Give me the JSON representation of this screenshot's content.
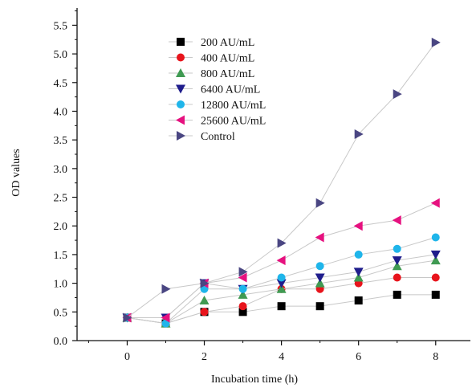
{
  "chart_data": {
    "type": "line",
    "xlabel": "Incubation time (h)",
    "ylabel": "OD values",
    "xlim": [
      -1.3,
      8.9
    ],
    "ylim": [
      0,
      5.8
    ],
    "xticks": [
      0,
      2,
      4,
      6,
      8
    ],
    "yticks": [
      0.0,
      0.5,
      1.0,
      1.5,
      2.0,
      2.5,
      3.0,
      3.5,
      4.0,
      4.5,
      5.0,
      5.5
    ],
    "ytick_labels": [
      "0.0",
      "0.5",
      "1.0",
      "1.5",
      "2.0",
      "2.5",
      "3.0",
      "3.5",
      "4.0",
      "4.5",
      "5.0",
      "5.5"
    ],
    "x": [
      0,
      1,
      2,
      3,
      4,
      5,
      6,
      7,
      8
    ],
    "legend_position": "top-left",
    "series": [
      {
        "name": "200 AU/mL",
        "marker": "square",
        "color": "#000000",
        "values": [
          0.4,
          0.3,
          0.5,
          0.5,
          0.6,
          0.6,
          0.7,
          0.8,
          0.8
        ]
      },
      {
        "name": "400  AU/mL",
        "marker": "circle",
        "color": "#e8141c",
        "values": [
          0.4,
          0.3,
          0.5,
          0.6,
          0.9,
          0.9,
          1.0,
          1.1,
          1.1
        ]
      },
      {
        "name": "800  AU/mL",
        "marker": "triangle-up",
        "color": "#3f9a52",
        "values": [
          0.4,
          0.3,
          0.7,
          0.8,
          0.9,
          1.0,
          1.1,
          1.3,
          1.4
        ]
      },
      {
        "name": "6400  AU/mL",
        "marker": "triangle-down",
        "color": "#1f1d8c",
        "values": [
          0.4,
          0.4,
          1.0,
          0.9,
          1.0,
          1.1,
          1.2,
          1.4,
          1.5
        ]
      },
      {
        "name": "12800 AU/mL",
        "marker": "circle",
        "color": "#1fb5ea",
        "values": [
          0.4,
          0.3,
          0.9,
          0.9,
          1.1,
          1.3,
          1.5,
          1.6,
          1.8
        ]
      },
      {
        "name": "25600 AU/mL",
        "marker": "triangle-left",
        "color": "#e6117f",
        "values": [
          0.4,
          0.4,
          1.0,
          1.1,
          1.4,
          1.8,
          2.0,
          2.1,
          2.4
        ]
      },
      {
        "name": "Control",
        "marker": "triangle-right",
        "color": "#4a4682",
        "values": [
          0.4,
          0.9,
          1.0,
          1.2,
          1.7,
          2.4,
          3.6,
          4.3,
          5.2
        ]
      }
    ]
  }
}
